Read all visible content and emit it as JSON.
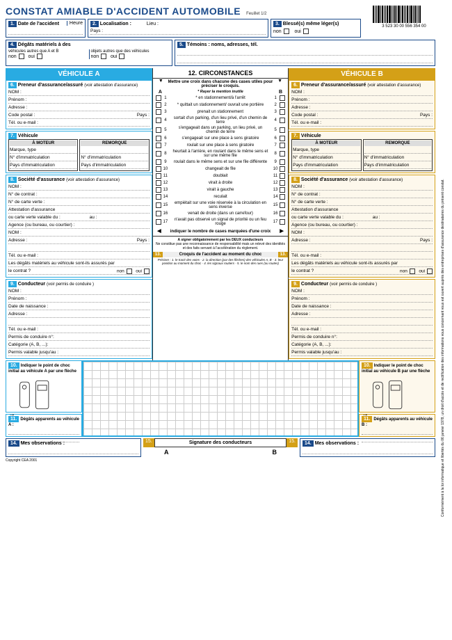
{
  "title": "CONSTAT AMIABLE D'ACCIDENT AUTOMOBILE",
  "feuillet": "Feuillet 1/2",
  "barcode": "3 523 30 00 556 354 00",
  "top": {
    "b1": {
      "n": "1.",
      "l": "Date de l'accident",
      "l2": "Heure"
    },
    "b2": {
      "n": "2.",
      "l": "Localisation :",
      "l2": "Lieu :",
      "l3": "Pays :"
    },
    "b3": {
      "n": "3.",
      "l": "Blessé(s) même léger(s)",
      "non": "non",
      "oui": "oui"
    }
  },
  "row2": {
    "b4": {
      "n": "4.",
      "l": "Dégâts matériels à des",
      "l2": "véhicules autres que A et B",
      "l3": "objets autres que des véhicules",
      "non": "non",
      "oui": "oui"
    },
    "b5": {
      "n": "5.",
      "l": "Témoins : noms, adresses, tél."
    }
  },
  "vA": {
    "head": "VÉHICULE A"
  },
  "vB": {
    "head": "VÉHICULE B"
  },
  "s6": {
    "n": "6.",
    "l": "Preneur d'assurance/assuré",
    "sub": "(voir attestation d'assurance)",
    "f": [
      "NOM :",
      "Prénom :",
      "Adresse :",
      "Code postal :",
      "Pays :",
      "Tél. ou e-mail :"
    ]
  },
  "s7": {
    "n": "7.",
    "l": "Véhicule",
    "h1": "À MOTEUR",
    "h2": "REMORQUE",
    "f1": "Marque, type",
    "f2": "N° d'immatriculation",
    "f3": "Pays d'immatriculation"
  },
  "s8": {
    "n": "8.",
    "l": "Société d'assurance",
    "sub": "(voir attestation d'assurance)",
    "f": [
      "NOM :",
      "N° de contrat :",
      "N° de carte verte :",
      "Attestation d'assurance",
      "ou carte verte valable du :",
      "Agence (ou bureau, ou courtier) :",
      "NOM :",
      "Adresse :",
      "",
      "Tél. ou e-mail :",
      "Les dégâts matériels au véhicule sont-ils assurés par",
      "le contrat ?"
    ],
    "au": "au :",
    "non": "non",
    "oui": "oui",
    "pays": "Pays :"
  },
  "s9": {
    "n": "9.",
    "l": "Conducteur",
    "sub": "(voir permis de conduire )",
    "f": [
      "NOM :",
      "Prénom :",
      "Date de naissance :",
      "Adresse :",
      "",
      "Tél. ou e-mail :",
      "Permis de conduire n°:",
      "Catégorie (A, B, ...):",
      "Permis valable jusqu'au :"
    ]
  },
  "s10": {
    "n": "10.",
    "lA": "Indiquer le point de choc initial au véhicule A par une flèche",
    "lB": "Indiquer le point de choc initial au véhicule B par une flèche"
  },
  "s11": {
    "n": "11.",
    "lA": "Dégâts apparents au véhicule A :",
    "lB": "Dégâts apparents au véhicule B :"
  },
  "s14": {
    "n": "14.",
    "l": "Mes observations :"
  },
  "circ": {
    "n": "12.",
    "head": "CIRCONSTANCES",
    "sub1": "Mettre une croix dans chacune des cases utiles pour préciser le croquis.",
    "sub2": "* Rayer la mention inutile",
    "items": [
      "* en stationnement/à l'arrêt",
      "* quittait un stationnement/ ouvrait une portière",
      "prenait un stationnement",
      "sortait d'un parking, d'un lieu privé, d'un chemin de terre",
      "s'engageait dans un parking, un lieu privé, un chemin de terre",
      "s'engageait sur une place à sens giratoire",
      "roulait sur une place à sens giratoire",
      "heurtait à l'arrière, en roulant dans le même sens et sur une même file",
      "roulait dans le même sens et sur une file différente",
      "changeait de file",
      "doublait",
      "virait à droite",
      "virait à gauche",
      "reculait",
      "empiétait sur une voie réservée à la circulation en sens inverse",
      "venait de droite (dans un carrefour)",
      "n'avait pas observé un signal de priorité ou un feu rouge"
    ],
    "final": "indiquer le nombre de cases marquées d'une croix",
    "foot": "A signer obligatoirement par les DEUX conducteurs",
    "foot2": "Ne constitue pas une reconnaissance de responsabilité mais un relevé des identités et des faits servant à l'accélération du règlement."
  },
  "s13": {
    "n": "13.",
    "l": "Croquis de l'accident au moment du choc",
    "sub": "Préciser : 1. le tracé des voies - 2. la direction (par des flèches) des véhicules A, B - 3. leur position au moment du choc - 4. les signaux routiers - 5. le nom des rues (ou routes)"
  },
  "s15": {
    "n": "15.",
    "l": "Signature des conducteurs"
  },
  "copyright": "Copyright CEA 2001",
  "sidetext": "Conformément à la loi informatique et libertés du 06 janvier 1978, un droit d'accès et de rectification des informations vous concernant vous est ouvert auprès des entreprises d'assurance destinataires du présent constat."
}
